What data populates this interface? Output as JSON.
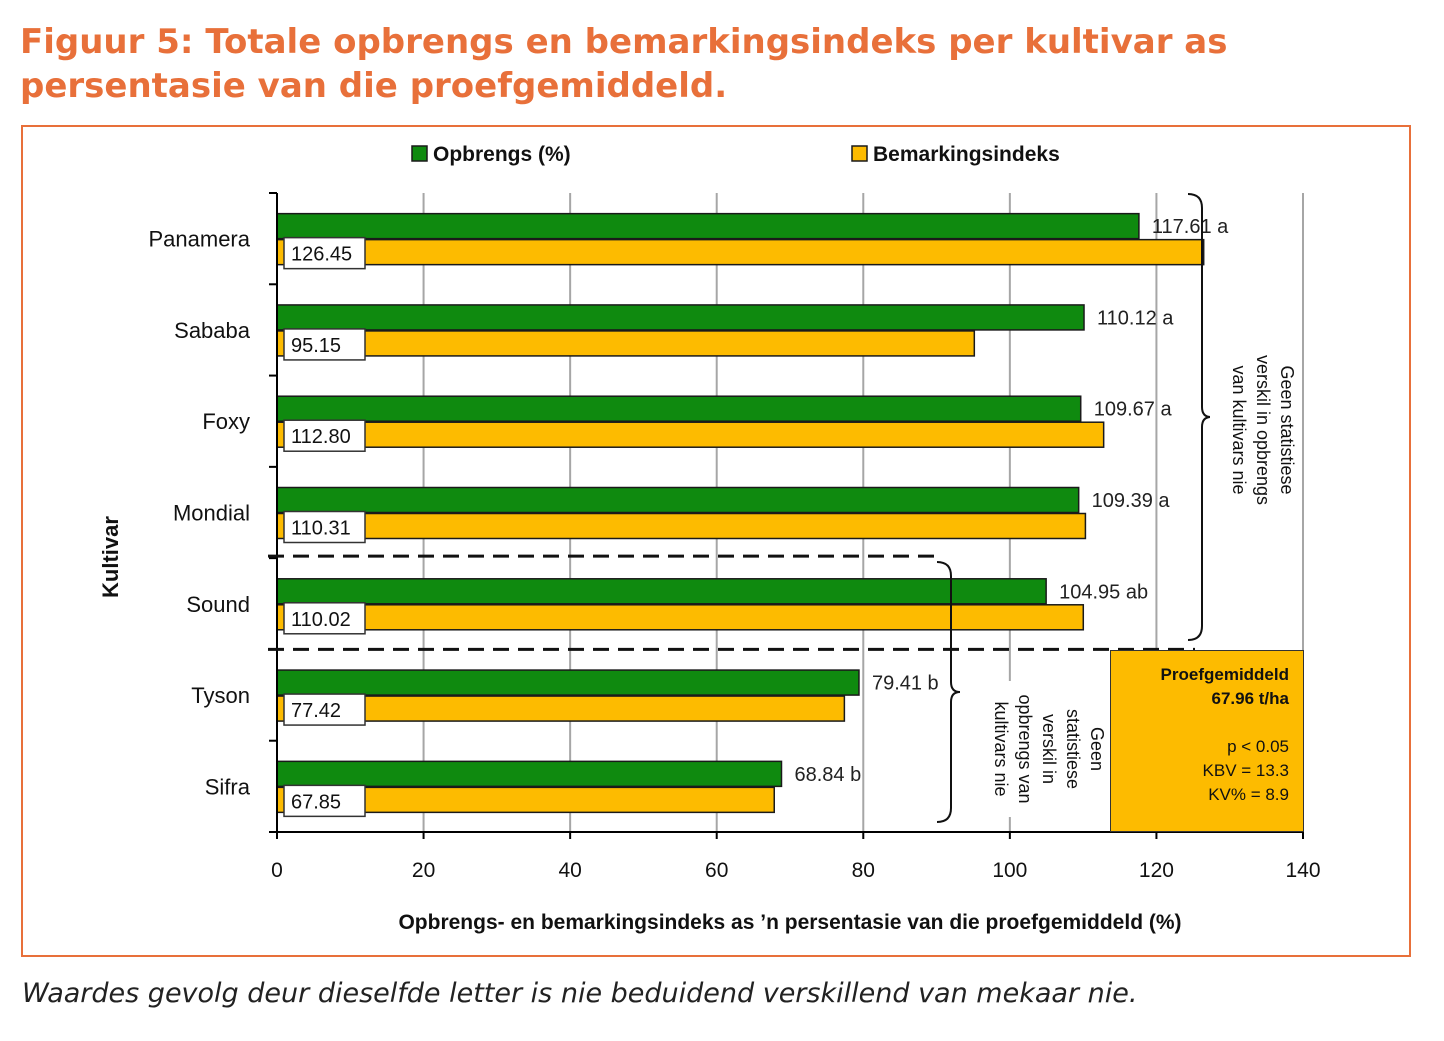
{
  "title": "Figuur 5: Totale opbrengs en bemarkingsindeks per kultivar as persentasie van die proefgemiddeld.",
  "footnote": "Waardes gevolg deur dieselfde letter is nie beduidend verskillend van mekaar nie.",
  "stats_box": {
    "title": "Proefgemiddeld",
    "mean": "67.96 t/ha",
    "p": "p < 0.05",
    "kbv": "KBV = 13.3",
    "kv": "KV% = 8.9"
  },
  "group_labels": {
    "group1": [
      "Geen statistiese",
      "verskil in opbrengs",
      "van kultivars nie"
    ],
    "group2": [
      "Geen",
      "statistiese",
      "verskil in",
      "opbrengs van",
      "kultivars nie"
    ]
  },
  "colors": {
    "yield": "#0f8a0f",
    "market": "#fdbb00",
    "frame": "#e8703a",
    "grid": "#a6a6a6"
  },
  "chart_data": {
    "type": "bar",
    "orientation": "horizontal",
    "categories": [
      "Panamera",
      "Sababa",
      "Foxy",
      "Mondial",
      "Sound",
      "Tyson",
      "Sifra"
    ],
    "series": [
      {
        "name": "Opbrengs (%)",
        "values": [
          117.61,
          110.12,
          109.67,
          109.39,
          104.95,
          79.41,
          68.84
        ],
        "labels": [
          "117.61 a",
          "110.12 a",
          "109.67 a",
          "109.39 a",
          "104.95 ab",
          "79.41 b",
          "68.84 b"
        ]
      },
      {
        "name": "Bemarkingsindeks",
        "values": [
          126.45,
          95.15,
          112.8,
          110.31,
          110.02,
          77.42,
          67.85
        ],
        "labels": [
          "126.45",
          "95.15",
          "112.80",
          "110.31",
          "110.02",
          "77.42",
          "67.85"
        ]
      }
    ],
    "xlabel": "Opbrengs- en bemarkingsindeks as ’n persentasie van die proefgemiddeld (%)",
    "ylabel": "Kultivar",
    "xlim": [
      0,
      140
    ],
    "xticks": [
      0,
      20,
      40,
      60,
      80,
      100,
      120,
      140
    ],
    "grid": true,
    "legend": "top"
  }
}
